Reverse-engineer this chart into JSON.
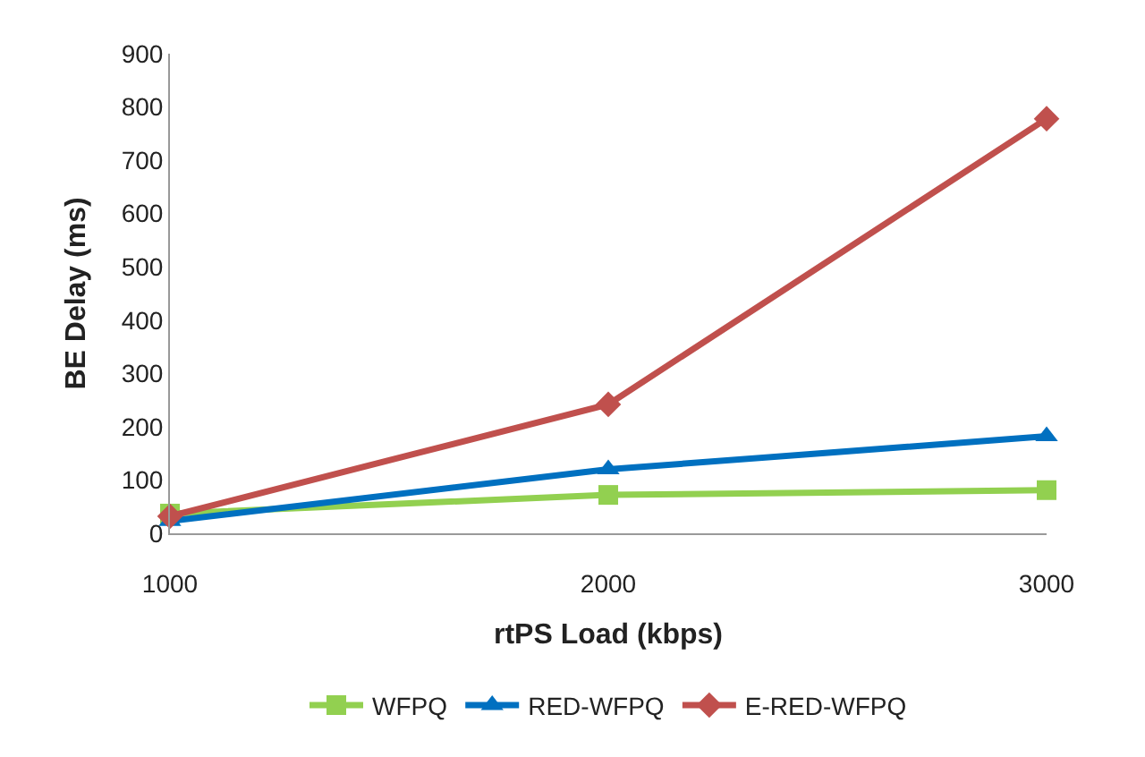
{
  "chart_data": {
    "type": "line",
    "xlabel": "rtPS Load (kbps)",
    "ylabel": "BE Delay (ms)",
    "categories": [
      "1000",
      "2000",
      "3000"
    ],
    "series": [
      {
        "name": "WFPQ",
        "color": "#92d050",
        "values": [
          37,
          72,
          81
        ],
        "marker": "square"
      },
      {
        "name": "RED-WFPQ",
        "color": "#0070c0",
        "values": [
          23,
          120,
          182
        ],
        "marker": "triangle"
      },
      {
        "name": "E-RED-WFPQ",
        "color": "#c0504d",
        "values": [
          32,
          242,
          778
        ],
        "marker": "diamond"
      }
    ],
    "ylim": [
      0,
      900
    ],
    "yticks": [
      0,
      100,
      200,
      300,
      400,
      500,
      600,
      700,
      800,
      900
    ],
    "legend": "bottom",
    "line_style": "solid"
  }
}
